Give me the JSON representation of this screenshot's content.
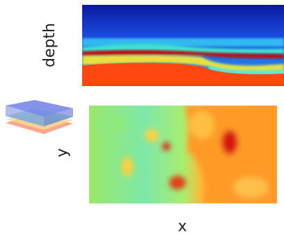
{
  "axes": {
    "top_ylabel": "depth",
    "bottom_ylabel": "y",
    "bottom_xlabel": "x"
  }
}
